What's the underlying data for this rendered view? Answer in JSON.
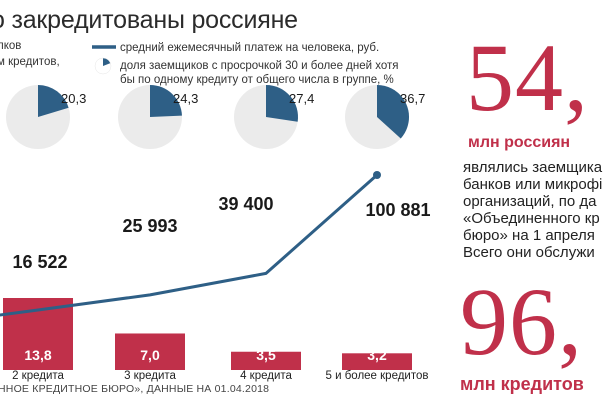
{
  "chart_data": {
    "type": "bar",
    "title": "о закредитованы россияне",
    "categories": [
      "2 кредита",
      "3 кредита",
      "4 кредита",
      "5 и более кредитов"
    ],
    "legend_left": [
      "лков",
      "м кредитов,"
    ],
    "legend": {
      "line": "средний ежемесячный платеж на человека, руб.",
      "pie_1": "доля заемщиков с просрочкой 30 и более дней хотя",
      "pie_2": "бы по одному кредиту от общего числа в группе, %"
    },
    "series": [
      {
        "name": "лков",
        "values": [
          13.8,
          7.0,
          3.5,
          3.2
        ],
        "labels": [
          "13,8",
          "7,0",
          "3,5",
          "3,2"
        ],
        "color": "#c0304a"
      },
      {
        "name": "средний ежемесячный платеж на человека, руб.",
        "values": [
          16522,
          25993,
          39400,
          100881
        ],
        "labels": [
          "16 522",
          "25 993",
          "39 400",
          "100 881"
        ],
        "color": "#2e5f86"
      },
      {
        "name": "доля заемщиков с просрочкой 30 и более дней хотя бы по одному кредиту от общего числа в группе, %",
        "values": [
          20.3,
          24.3,
          27.4,
          36.7
        ],
        "labels": [
          "20,3",
          "24,3",
          "27,4",
          "36,7"
        ],
        "color": "#2e5f86"
      }
    ],
    "source": "ННОЕ КРЕДИТНОЕ БЮРО», ДАННЫЕ НА 01.04.2018"
  },
  "right_panel": {
    "stat1": {
      "value": "54,",
      "unit": "млн россиян",
      "text": "являлись заемщика\nбанков или микрофі\nорганизаций, по да\n«Объединенного кр\nбюро» на 1 апреля\nВсего они обслужи"
    },
    "stat2": {
      "value": "96,",
      "unit": "млн кредитов"
    }
  }
}
